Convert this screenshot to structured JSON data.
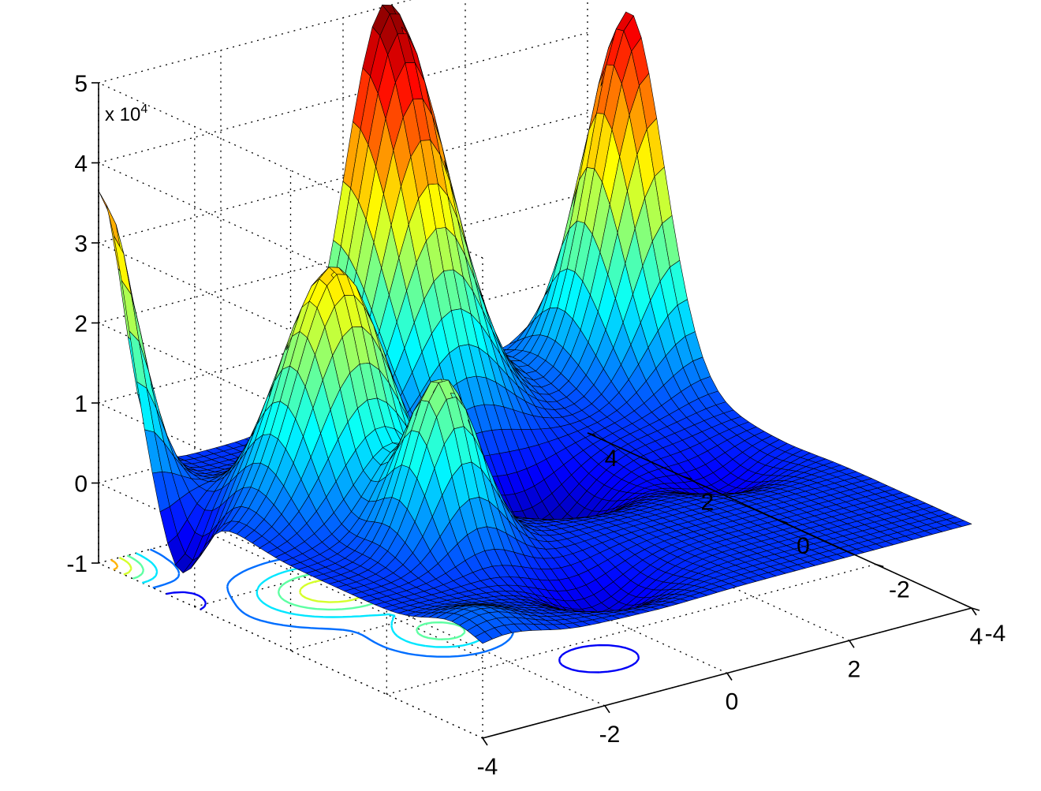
{
  "chart_data": {
    "type": "surface",
    "title": "",
    "xlabel": "",
    "ylabel": "",
    "zlabel": "",
    "z_multiplier_label": "x 10",
    "z_multiplier_exponent": "4",
    "xlim": [
      -4,
      4
    ],
    "ylim": [
      -4,
      4
    ],
    "zlim": [
      -1,
      5
    ],
    "x_ticks": [
      "-4",
      "-2",
      "0",
      "2",
      "4"
    ],
    "y_ticks": [
      "-4",
      "-2",
      "0",
      "2",
      "4"
    ],
    "z_ticks": [
      "-1",
      "0",
      "1",
      "2",
      "3",
      "4",
      "5"
    ],
    "grid": true,
    "box": false,
    "colormap": "jet",
    "contour_projection": true,
    "mesh_resolution": 50,
    "surface_samples": {
      "x": [
        -4,
        -2,
        0,
        2,
        4
      ],
      "y": [
        -4,
        -2,
        0,
        2,
        4
      ],
      "z_x1e4": [
        [
          0.5,
          1.0,
          0.2,
          0.5,
          3.5
        ],
        [
          0.8,
          2.9,
          0.5,
          1.0,
          0.5
        ],
        [
          0.3,
          0.6,
          0.1,
          4.8,
          0.6
        ],
        [
          -0.2,
          2.1,
          0.3,
          0.8,
          0.3
        ],
        [
          0.1,
          0.4,
          -0.6,
          0.5,
          3.9
        ]
      ]
    }
  }
}
